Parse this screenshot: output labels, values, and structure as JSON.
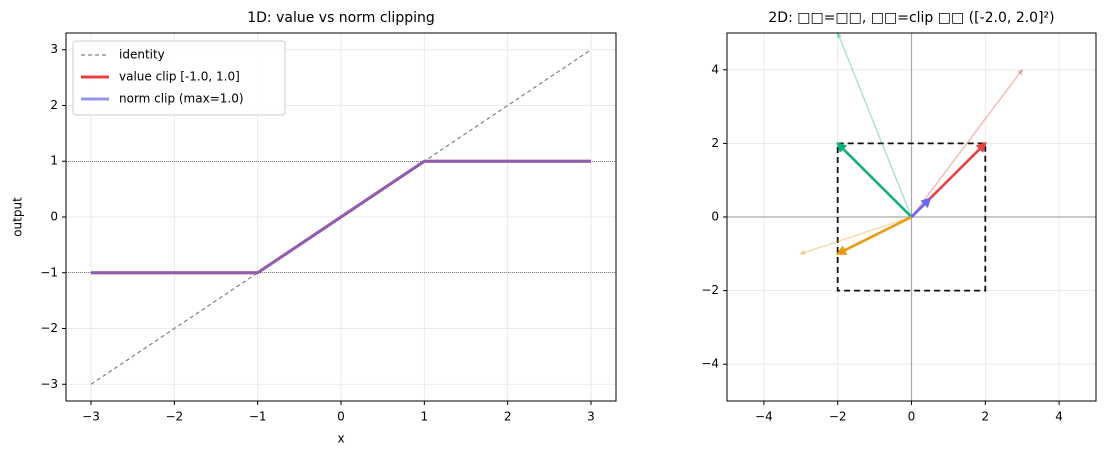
{
  "chart_data": [
    {
      "type": "line",
      "title": "1D: value vs norm clipping",
      "xlabel": "x",
      "ylabel": "output",
      "xlim": [
        -3.3,
        3.3
      ],
      "ylim": [
        -3.3,
        3.3
      ],
      "xticks": [
        {
          "value": -3,
          "label": "−3"
        },
        {
          "value": -2,
          "label": "−2"
        },
        {
          "value": -1,
          "label": "−1"
        },
        0,
        1,
        2,
        3
      ],
      "yticks": [
        {
          "value": -3,
          "label": "−3"
        },
        {
          "value": -2,
          "label": "−2"
        },
        {
          "value": -1,
          "label": "−1"
        },
        0,
        1,
        2,
        3
      ],
      "grid": true,
      "legend": "upper left",
      "hlines": [
        -1,
        1
      ],
      "series": [
        {
          "name": "identity",
          "color": "#808080",
          "dashed": true,
          "width": 1.2,
          "alpha": 1,
          "x": [
            -3,
            3
          ],
          "values": [
            -3,
            3
          ]
        },
        {
          "name": "value clip [-1.0, 1.0]",
          "color": "#e84040",
          "dashed": false,
          "width": 3,
          "alpha": 1,
          "x": [
            -3,
            -1,
            1,
            3
          ],
          "values": [
            -1,
            -1,
            1,
            1
          ]
        },
        {
          "name": "norm clip (max=1.0)",
          "color": "#6a6ae0",
          "dashed": false,
          "width": 3,
          "alpha": 0.7,
          "x": [
            -3,
            -1,
            1,
            3
          ],
          "values": [
            -1,
            -1,
            1,
            1
          ]
        }
      ]
    },
    {
      "type": "quiver",
      "title": "2D: □□=□□, □□=clip □□  ([-2.0, 2.0]²)",
      "xlim": [
        -5,
        5
      ],
      "ylim": [
        -5,
        5
      ],
      "xticks": [
        {
          "value": -4,
          "label": "−4"
        },
        {
          "value": -2,
          "label": "−2"
        },
        0,
        2,
        4
      ],
      "yticks": [
        {
          "value": -4,
          "label": "−4"
        },
        {
          "value": -2,
          "label": "−2"
        },
        0,
        2,
        4
      ],
      "grid": true,
      "clip_box": [
        -2,
        2
      ],
      "vectors": [
        {
          "color": "#e84040",
          "original": [
            3,
            4
          ],
          "clipped": [
            2,
            2
          ]
        },
        {
          "color": "#10b07a",
          "original": [
            -2,
            5
          ],
          "clipped": [
            -2,
            2
          ]
        },
        {
          "color": "#e89a10",
          "original": [
            -3,
            -1
          ],
          "clipped": [
            -2,
            -1
          ]
        },
        {
          "color": "#6a6af0",
          "original": [
            0.5,
            0.5
          ],
          "clipped": [
            0.5,
            0.5
          ]
        }
      ]
    }
  ]
}
